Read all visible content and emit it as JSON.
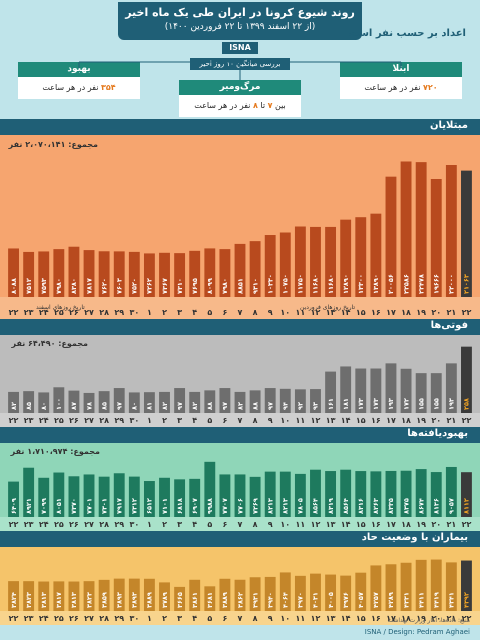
{
  "header": {
    "title": "روند شیوع کرونا در ایران طی یک ماه اخیر",
    "subtitle": "(از ۲۲ اسفند ۱۳۹۹ تا ۲۲ فروردین ۱۴۰۰)",
    "agency": "ISNA",
    "stat_label": "اعداد بر حسب نفر است",
    "review_label": "بررسی میانگین ۱۰ روز اخیر"
  },
  "summaries": [
    {
      "name": "ابتلا",
      "value": "۷۲۰",
      "unit": "نفر در هر ساعت"
    },
    {
      "name": "مرگ‌ومیر",
      "prefix": "بین",
      "value": "۷",
      "mid": "تا",
      "value2": "۸",
      "unit": "نفر در هر ساعت"
    },
    {
      "name": "بهبود",
      "value": "۳۵۴",
      "unit": "نفر در هر ساعت"
    }
  ],
  "colors": {
    "accent": "#1f5f76",
    "cases_bg": "#f6a56f",
    "deaths_bg": "#bcbcbc",
    "recovered_bg": "#8fd6b8",
    "critical_bg": "#f5c46a",
    "bar_dark": "#3a3a3a",
    "highlight": "#f5a623"
  },
  "panels": {
    "cases": {
      "title": "مبتلایان",
      "total": "مجموع: ۲،۰۷۰،۱۴۱ نفر",
      "month1": "تاریخ روزهای اسفند",
      "month2": "تاریخ روزهای فروردین"
    },
    "deaths": {
      "title": "فوتی‌ها",
      "total": "مجموع: ۶۴،۴۹۰ نفر"
    },
    "recovered": {
      "title": "بهبودیافته‌ها",
      "total": "مجموع: ۱،۷۱۰،۹۷۴ نفر"
    },
    "critical": {
      "title": "بیماران با وضعیت حاد"
    }
  },
  "chart_data": [
    {
      "type": "bar",
      "title": "مبتلایان",
      "categories": [
        "۲۲",
        "۲۳",
        "۲۴",
        "۲۵",
        "۲۶",
        "۲۷",
        "۲۸",
        "۲۹",
        "۳۰",
        "۱",
        "۲",
        "۳",
        "۴",
        "۵",
        "۶",
        "۷",
        "۸",
        "۹",
        "۱۰",
        "۱۱",
        "۱۲",
        "۱۳",
        "۱۴",
        "۱۵",
        "۱۶",
        "۱۷",
        "۱۸",
        "۱۹",
        "۲۰",
        "۲۱",
        "۲۲"
      ],
      "values": [
        8088,
        7512,
        7593,
        7980,
        8380,
        7817,
        7620,
        7603,
        7520,
        7262,
        7367,
        7310,
        7695,
        8099,
        7980,
        8851,
        9310,
        10330,
        10750,
        11750,
        11680,
        11680,
        12890,
        13300,
        13890,
        20056,
        22586,
        22478,
        19666,
        22000,
        21063
      ],
      "labels": [
        "۸۰۸۸",
        "۷۵۱۲",
        "۷۵۹۳",
        "۷۹۸۰",
        "۸۳۸۰",
        "۷۸۱۷",
        "۷۶۲۰",
        "۷۶۰۳",
        "۷۵۲۰",
        "۷۲۶۲",
        "۷۳۶۷",
        "۷۳۱۰",
        "۷۶۹۵",
        "۸۰۹۹",
        "۷۹۸۰",
        "۸۸۵۱",
        "۹۳۱۰",
        "۱۰۳۳۰",
        "۱۰۷۵۰",
        "۱۱۷۵۰",
        "۱۱۶۸۰",
        "۱۱۶۸۰",
        "۱۲۸۹۰",
        "۱۳۳۰۰",
        "۱۳۸۹۰",
        "۲۰۰۵۶",
        "۲۲۵۸۶",
        "۲۲۴۷۸",
        "۱۹۶۶۶",
        "۲۲۰۰۰",
        "۲۱۰۶۳"
      ],
      "ylim": [
        0,
        24000
      ]
    },
    {
      "type": "bar",
      "title": "فوتی‌ها",
      "categories": [
        "۲۲",
        "۲۳",
        "۲۴",
        "۲۵",
        "۲۶",
        "۲۷",
        "۲۸",
        "۲۹",
        "۳۰",
        "۱",
        "۲",
        "۳",
        "۴",
        "۵",
        "۶",
        "۷",
        "۸",
        "۹",
        "۱۰",
        "۱۱",
        "۱۲",
        "۱۳",
        "۱۴",
        "۱۵",
        "۱۶",
        "۱۷",
        "۱۸",
        "۱۹",
        "۲۰",
        "۲۱",
        "۲۲"
      ],
      "values": [
        82,
        85,
        80,
        100,
        87,
        78,
        85,
        97,
        80,
        81,
        82,
        97,
        82,
        88,
        97,
        82,
        88,
        97,
        94,
        92,
        93,
        161,
        181,
        173,
        173,
        193,
        172,
        155,
        155,
        193,
        258
      ],
      "labels": [
        "۸۲",
        "۸۵",
        "۸۰",
        "۱۰۰",
        "۸۷",
        "۷۸",
        "۸۵",
        "۹۷",
        "۸۰",
        "۸۱",
        "۸۲",
        "۹۷",
        "۸۲",
        "۸۸",
        "۹۷",
        "۸۲",
        "۸۸",
        "۹۷",
        "۹۴",
        "۹۲",
        "۹۳",
        "۱۶۱",
        "۱۸۱",
        "۱۷۳",
        "۱۷۳",
        "۱۹۳",
        "۱۷۲",
        "۱۵۵",
        "۱۵۵",
        "۱۹۳",
        "۲۵۸"
      ],
      "ylim": [
        0,
        280
      ]
    },
    {
      "type": "bar",
      "title": "بهبودیافته‌ها",
      "categories": [
        "۲۲",
        "۲۳",
        "۲۴",
        "۲۵",
        "۲۶",
        "۲۷",
        "۲۸",
        "۲۹",
        "۳۰",
        "۱",
        "۲",
        "۳",
        "۴",
        "۵",
        "۶",
        "۷",
        "۸",
        "۹",
        "۱۰",
        "۱۱",
        "۱۲",
        "۱۳",
        "۱۴",
        "۱۵",
        "۱۶",
        "۱۷",
        "۱۸",
        "۱۹",
        "۲۰",
        "۲۱",
        "۲۲"
      ],
      "values": [
        6409,
        8921,
        7099,
        8051,
        7370,
        7701,
        7301,
        7917,
        7312,
        6512,
        7101,
        6818,
        6907,
        9988,
        7707,
        7706,
        7269,
        8213,
        8213,
        7805,
        8564,
        8319,
        8564,
        8316,
        8263,
        8335,
        8375,
        8674,
        8136,
        9057,
        8112
      ],
      "labels": [
        "۶۴۰۹",
        "۸۹۲۱",
        "۷۰۹۹",
        "۸۰۵۱",
        "۷۳۷۰",
        "۷۷۰۱",
        "۷۳۰۱",
        "۷۹۱۷",
        "۷۳۱۲",
        "۶۵۱۲",
        "۷۱۰۱",
        "۶۸۱۸",
        "۶۹۰۷",
        "۹۹۸۸",
        "۷۷۰۷",
        "۷۷۰۶",
        "۷۲۶۹",
        "۸۲۱۳",
        "۸۲۱۳",
        "۷۸۰۵",
        "۸۵۶۴",
        "۸۳۱۹",
        "۸۵۶۴",
        "۸۳۱۶",
        "۸۲۶۳",
        "۸۳۳۵",
        "۸۳۷۵",
        "۸۶۷۴",
        "۸۱۳۶",
        "۹۰۵۷",
        "۸۱۱۲"
      ],
      "ylim": [
        0,
        10500
      ]
    },
    {
      "type": "bar",
      "title": "بیماران با وضعیت حاد",
      "categories": [
        "۲۲",
        "۲۳",
        "۲۴",
        "۲۵",
        "۲۶",
        "۲۷",
        "۲۸",
        "۲۹",
        "۳۰",
        "۱",
        "۲",
        "۳",
        "۴",
        "۵",
        "۶",
        "۷",
        "۸",
        "۹",
        "۱۰",
        "۱۱",
        "۱۲",
        "۱۳",
        "۱۴",
        "۱۵",
        "۱۶",
        "۱۷",
        "۱۸",
        "۱۹",
        "۲۰",
        "۲۱",
        "۲۲"
      ],
      "values": [
        3824,
        3823,
        3813,
        3817,
        3813,
        3823,
        3859,
        3893,
        3893,
        3889,
        3789,
        3665,
        3861,
        3681,
        3889,
        3862,
        3931,
        3940,
        4064,
        3970,
        4031,
        4005,
        3976,
        4057,
        4257,
        4289,
        4331,
        4411,
        4419,
        4341,
        4392
      ],
      "labels": [
        "۳۸۲۴",
        "۳۸۲۳",
        "۳۸۱۳",
        "۳۸۱۷",
        "۳۸۱۳",
        "۳۸۲۳",
        "۳۸۵۹",
        "۳۸۹۳",
        "۳۸۹۳",
        "۳۸۸۹",
        "۳۷۸۹",
        "۳۶۶۵",
        "۳۸۶۱",
        "۳۶۸۱",
        "۳۸۸۹",
        "۳۸۶۲",
        "۳۹۳۱",
        "۳۹۴۰",
        "۴۰۶۴",
        "۳۹۷۰",
        "۴۰۳۱",
        "۴۰۰۵",
        "۳۹۷۶",
        "۴۰۵۷",
        "۴۲۵۷",
        "۴۲۸۹",
        "۴۳۳۱",
        "۴۴۱۱",
        "۴۴۱۹",
        "۴۳۴۱",
        "۴۳۹۲"
      ],
      "ylim": [
        3000,
        4600
      ]
    }
  ],
  "footer": {
    "source": "منبع: داده‌ها، آمار وزارت بهداشت",
    "credit": "ISNA / Design: Pedram Aghaei"
  }
}
